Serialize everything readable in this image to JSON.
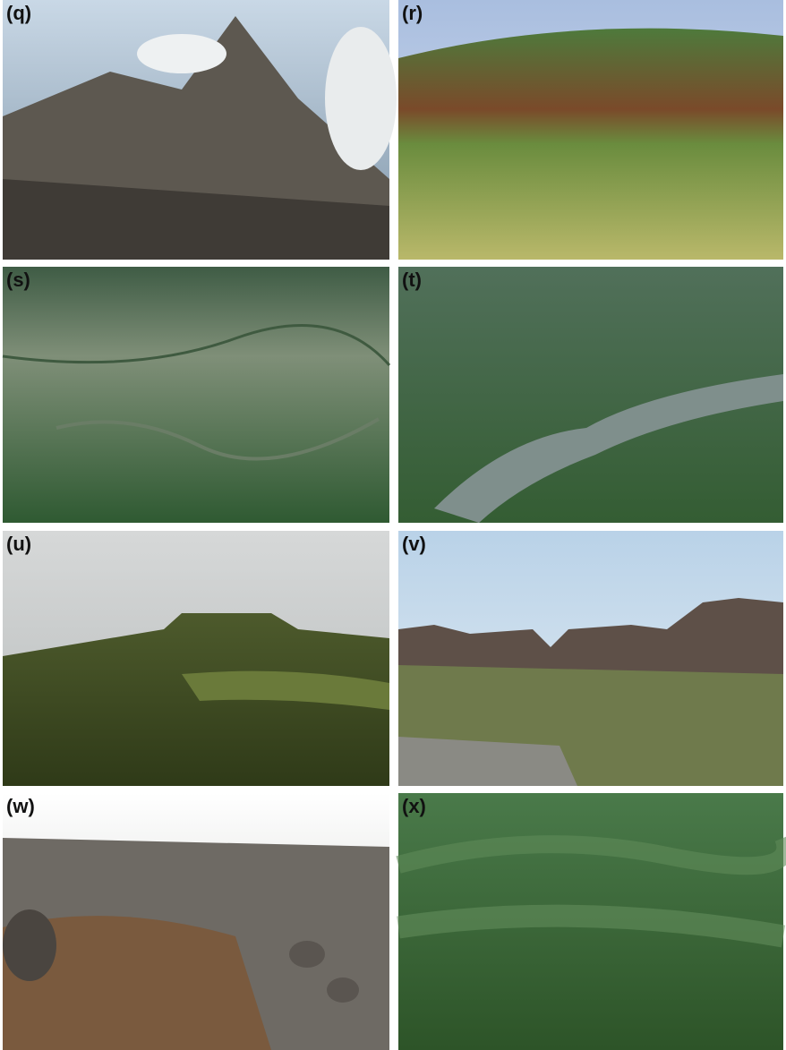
{
  "panels": [
    {
      "label": "(q)"
    },
    {
      "label": "(r)"
    },
    {
      "label": "(s)"
    },
    {
      "label": "(t)"
    },
    {
      "label": "(u)"
    },
    {
      "label": "(v)"
    },
    {
      "label": "(w)"
    },
    {
      "label": "(x)"
    }
  ]
}
